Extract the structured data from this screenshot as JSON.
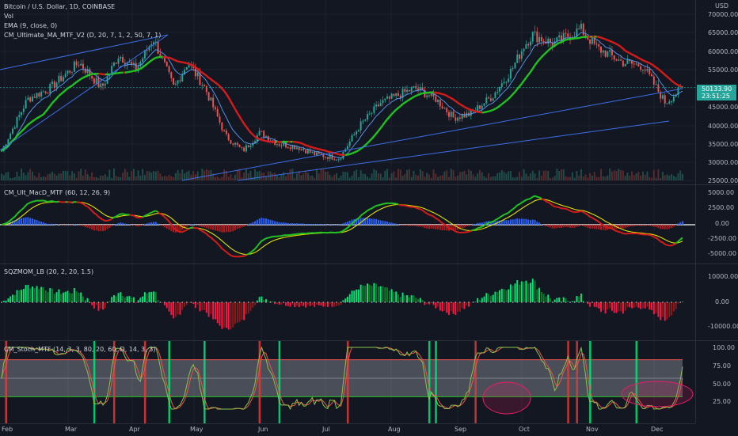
{
  "legend": {
    "title": "Bitcoin / U.S. Dollar, 1D, COINBASE",
    "vol": "Vol",
    "ema": "EMA (9, close, 0)",
    "ma": "CM_Ultimate_MA_MTF_V2 (D, 20, 7, 1, 2, 50, 7, 1)"
  },
  "pane_titles": {
    "macd": "CM_Ult_MacD_MTF (60, 12, 26, 9)",
    "sqz": "SQZMOM_LB (20, 2, 20, 1.5)",
    "stoch": "CM_Stoch_MTF (14, 3, 3, 80, 20, 60, D, 14, 3, 3)"
  },
  "currency": "USD",
  "last_price": "50133.90",
  "countdown": "23:51:25",
  "price_ticks": [
    "70000.00",
    "65000.00",
    "60000.00",
    "55000.00",
    "45000.00",
    "40000.00",
    "35000.00",
    "30000.00",
    "25000.00"
  ],
  "macd_ticks": [
    "5000.00",
    "2500.00",
    "0.00",
    "-2500.00",
    "-5000.00"
  ],
  "sqz_ticks": [
    "10000.00",
    "0.00",
    "-10000.00"
  ],
  "stoch_ticks": [
    "100.00",
    "75.00",
    "50.00",
    "25.00"
  ],
  "time_labels": [
    "Feb",
    "Mar",
    "Apr",
    "May",
    "Jun",
    "Jul",
    "Aug",
    "Sep",
    "Oct",
    "Nov",
    "Dec"
  ],
  "colors": {
    "bg": "#131722",
    "up": "#26a69a",
    "down": "#ef5350",
    "ema": "#5b9cf6",
    "ma_up": "#21c421",
    "ma_down": "#d81b1b",
    "macd_line": "#e0e000",
    "trend": "#3c6fe6"
  },
  "chart_data": {
    "type": "candlestick",
    "title": "Bitcoin / U.S. Dollar, 1D, COINBASE",
    "months": [
      "Feb",
      "Mar",
      "Apr",
      "May",
      "Jun",
      "Jul",
      "Aug",
      "Sep",
      "Oct",
      "Nov",
      "Dec"
    ],
    "monthly_close_usd": [
      45000,
      58800,
      57700,
      37300,
      35000,
      41500,
      47100,
      43800,
      61300,
      57000,
      50133.9
    ],
    "current_price_usd": 50133.9,
    "y_range_usd": [
      25000,
      70000
    ],
    "stoch_levels": [
      80,
      20
    ]
  }
}
